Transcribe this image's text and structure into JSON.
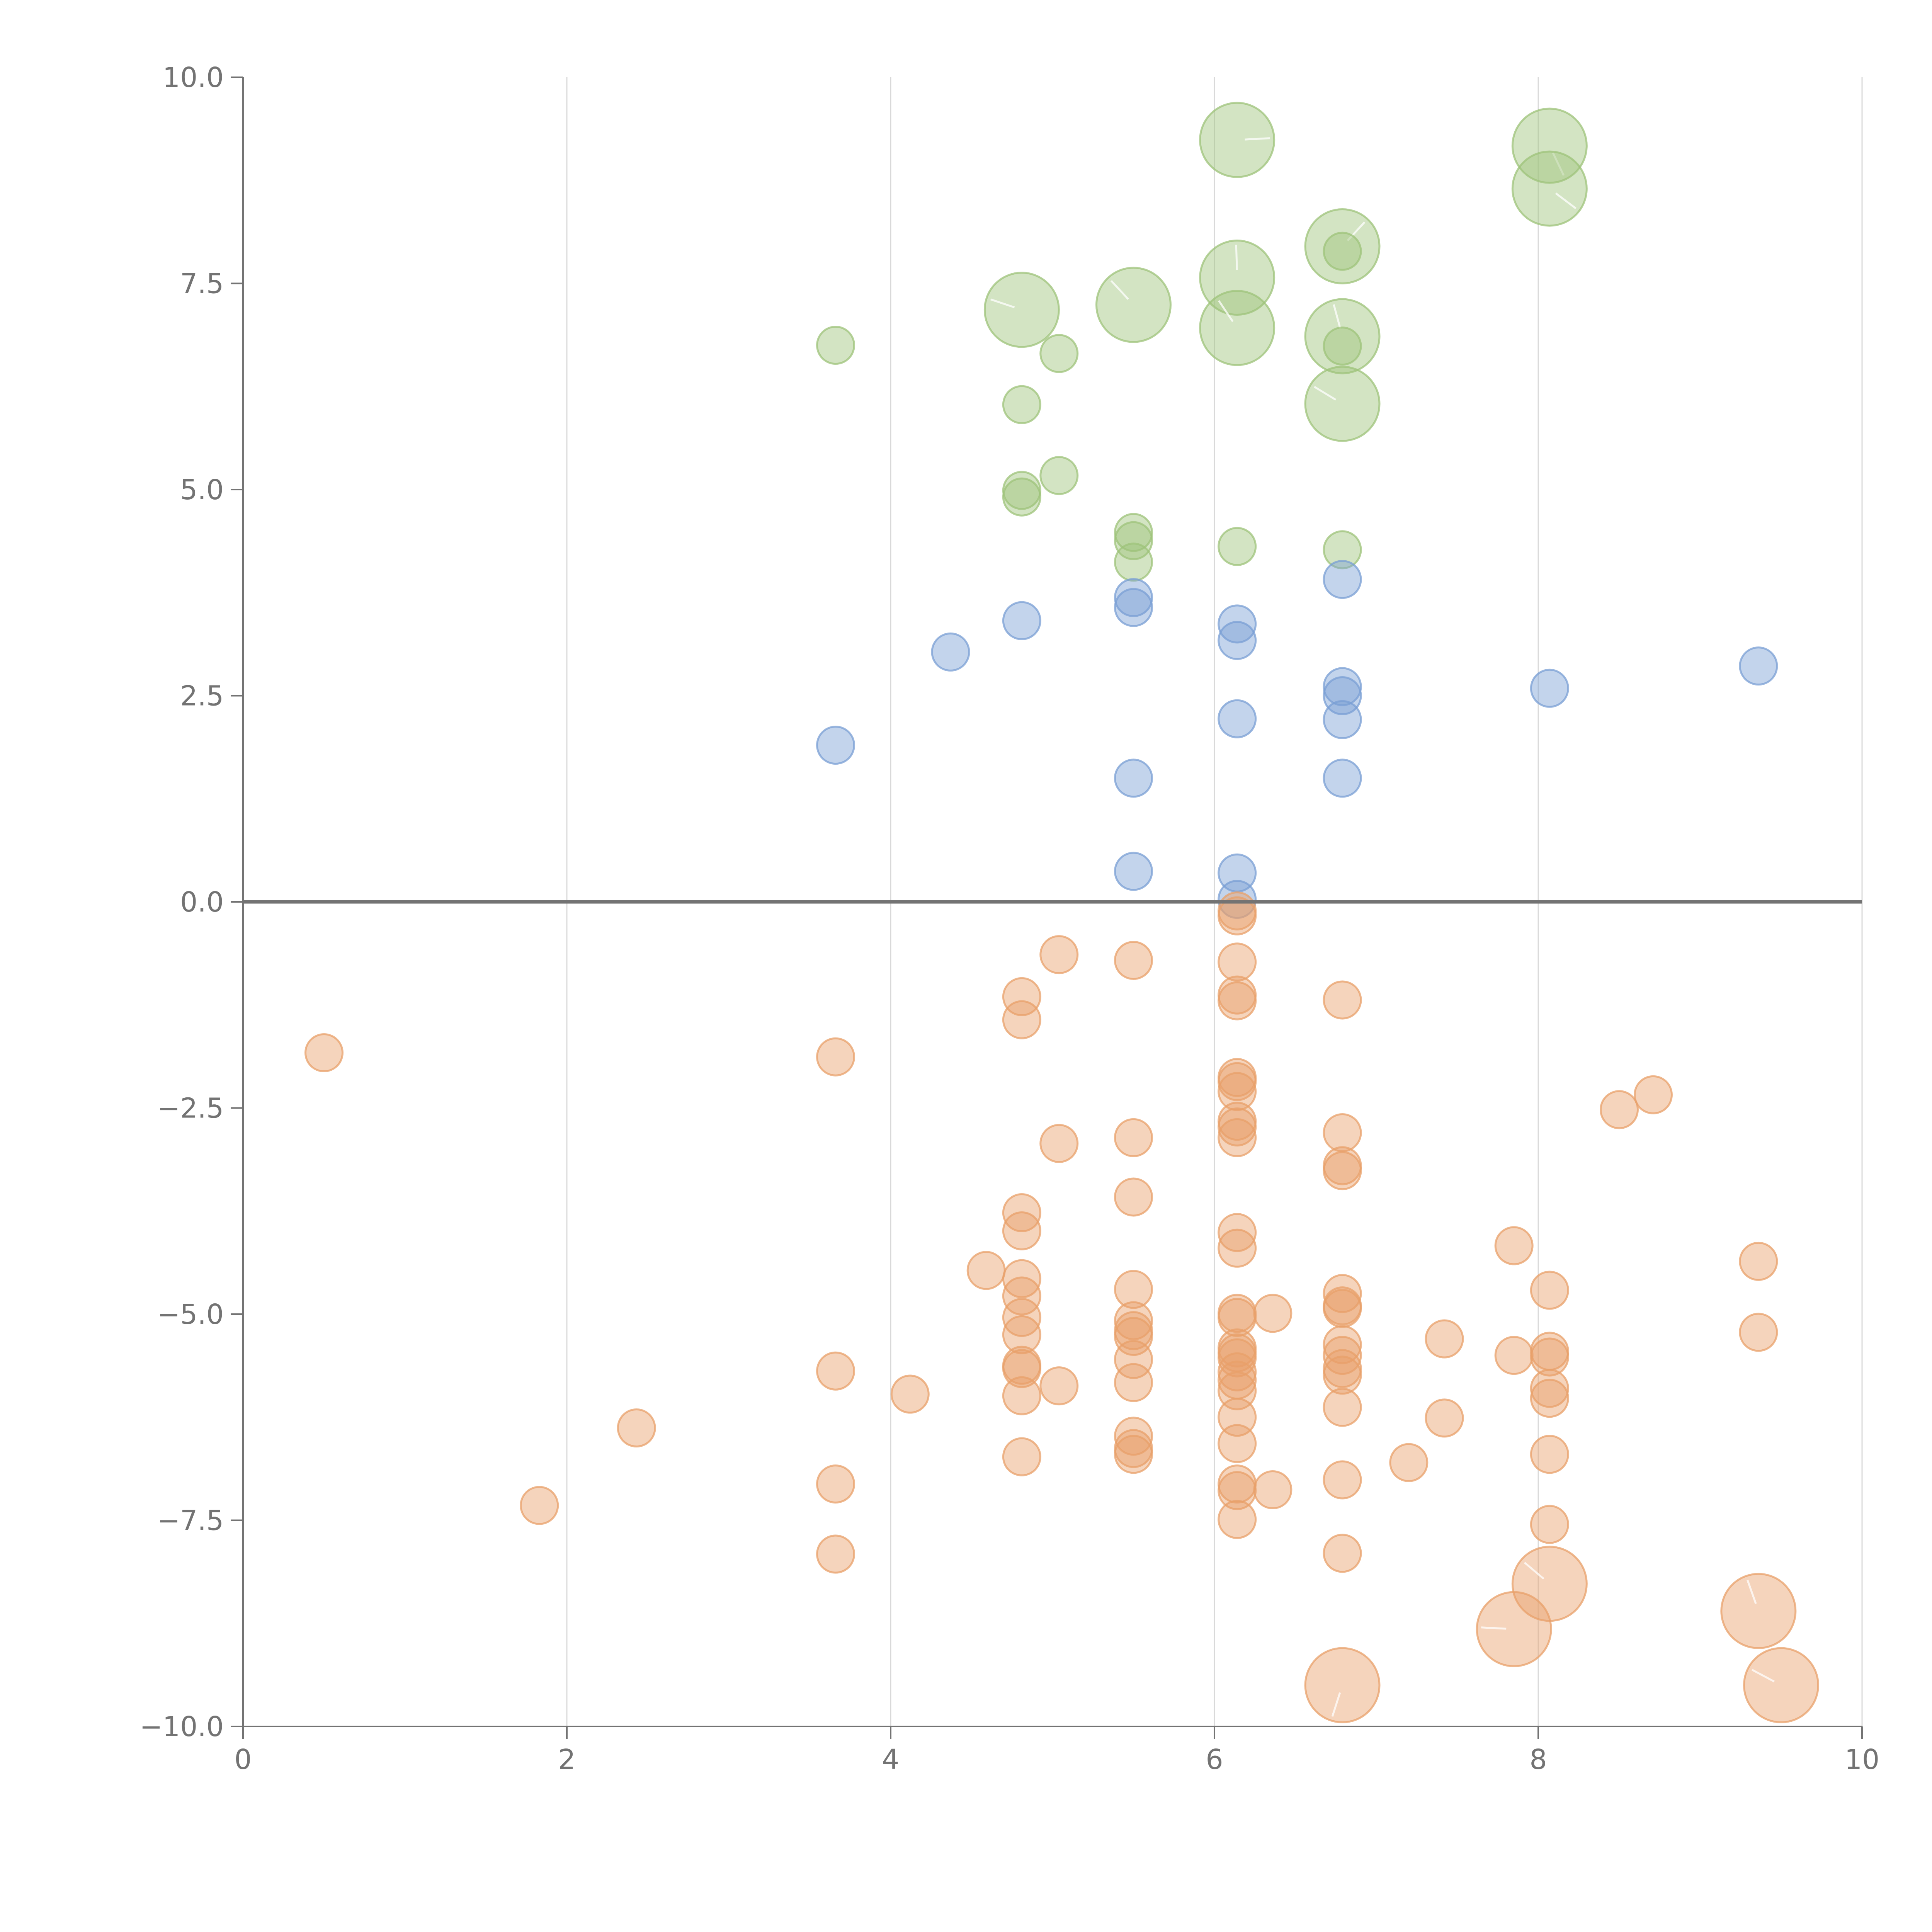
{
  "chart_data": {
    "type": "scatter",
    "title": "",
    "xlabel": "",
    "ylabel": "",
    "xlim": [
      0,
      10
    ],
    "ylim": [
      -10,
      10
    ],
    "x_ticks": [
      0,
      2,
      4,
      6,
      8,
      10
    ],
    "y_ticks": [
      -10,
      -7.5,
      -5,
      -2.5,
      0,
      2.5,
      5,
      7.5,
      10
    ],
    "x_tick_labels": [
      "0",
      "2",
      "4",
      "6",
      "8",
      "10"
    ],
    "y_tick_labels": [
      "−10.0",
      "−7.5",
      "−5.0",
      "−2.5",
      "0.0",
      "2.5",
      "5.0",
      "7.5",
      "10.0"
    ],
    "grid": "vertical only",
    "zero_line": true,
    "point_style": "semi-transparent circles, size encodes a third value",
    "series": [
      {
        "color": "#9dc37a",
        "points": [
          {
            "x": 6.14,
            "y": 9.24,
            "size": 3
          },
          {
            "x": 8.07,
            "y": 9.17,
            "size": 3
          },
          {
            "x": 8.07,
            "y": 8.65,
            "size": 3
          },
          {
            "x": 6.79,
            "y": 7.95,
            "size": 3
          },
          {
            "x": 6.79,
            "y": 7.89,
            "size": 1
          },
          {
            "x": 6.14,
            "y": 7.57,
            "size": 3
          },
          {
            "x": 4.81,
            "y": 7.18,
            "size": 3
          },
          {
            "x": 5.5,
            "y": 7.24,
            "size": 3
          },
          {
            "x": 6.14,
            "y": 6.96,
            "size": 3
          },
          {
            "x": 6.79,
            "y": 6.86,
            "size": 3
          },
          {
            "x": 6.79,
            "y": 6.74,
            "size": 1
          },
          {
            "x": 3.66,
            "y": 6.75,
            "size": 1
          },
          {
            "x": 5.04,
            "y": 6.65,
            "size": 1
          },
          {
            "x": 4.81,
            "y": 6.03,
            "size": 1
          },
          {
            "x": 6.79,
            "y": 6.04,
            "size": 3
          },
          {
            "x": 5.04,
            "y": 5.17,
            "size": 1
          },
          {
            "x": 4.81,
            "y": 4.99,
            "size": 1
          },
          {
            "x": 4.81,
            "y": 4.91,
            "size": 1
          },
          {
            "x": 5.5,
            "y": 4.48,
            "size": 1
          },
          {
            "x": 5.5,
            "y": 4.38,
            "size": 1
          },
          {
            "x": 6.14,
            "y": 4.31,
            "size": 1
          },
          {
            "x": 6.79,
            "y": 4.27,
            "size": 1
          },
          {
            "x": 5.5,
            "y": 4.12,
            "size": 1
          }
        ]
      },
      {
        "color": "#7a9fd4",
        "points": [
          {
            "x": 6.79,
            "y": 3.91
          },
          {
            "x": 5.5,
            "y": 3.69
          },
          {
            "x": 5.5,
            "y": 3.57
          },
          {
            "x": 4.81,
            "y": 3.41
          },
          {
            "x": 6.14,
            "y": 3.37
          },
          {
            "x": 6.14,
            "y": 3.17
          },
          {
            "x": 4.37,
            "y": 3.03
          },
          {
            "x": 9.36,
            "y": 2.86
          },
          {
            "x": 6.79,
            "y": 2.61
          },
          {
            "x": 8.07,
            "y": 2.59
          },
          {
            "x": 6.79,
            "y": 2.5
          },
          {
            "x": 6.14,
            "y": 2.22
          },
          {
            "x": 6.79,
            "y": 2.21
          },
          {
            "x": 3.66,
            "y": 1.9
          },
          {
            "x": 5.5,
            "y": 1.5
          },
          {
            "x": 6.79,
            "y": 1.5
          },
          {
            "x": 5.5,
            "y": 0.37
          },
          {
            "x": 6.14,
            "y": 0.35
          },
          {
            "x": 6.14,
            "y": 0.03
          }
        ]
      },
      {
        "color": "#e8a06a",
        "points": [
          {
            "x": 6.14,
            "y": -0.11
          },
          {
            "x": 6.14,
            "y": -0.17
          },
          {
            "x": 5.04,
            "y": -0.64
          },
          {
            "x": 5.5,
            "y": -0.71
          },
          {
            "x": 6.14,
            "y": -0.73
          },
          {
            "x": 4.81,
            "y": -1.15
          },
          {
            "x": 6.14,
            "y": -1.13
          },
          {
            "x": 6.14,
            "y": -1.2
          },
          {
            "x": 6.79,
            "y": -1.19
          },
          {
            "x": 4.81,
            "y": -1.43
          },
          {
            "x": 0.5,
            "y": -1.83
          },
          {
            "x": 3.66,
            "y": -1.88
          },
          {
            "x": 6.14,
            "y": -2.13
          },
          {
            "x": 6.14,
            "y": -2.18
          },
          {
            "x": 6.14,
            "y": -2.3
          },
          {
            "x": 8.71,
            "y": -2.34
          },
          {
            "x": 8.5,
            "y": -2.52
          },
          {
            "x": 6.14,
            "y": -2.66
          },
          {
            "x": 6.14,
            "y": -2.73
          },
          {
            "x": 6.79,
            "y": -2.8
          },
          {
            "x": 5.5,
            "y": -2.86
          },
          {
            "x": 6.14,
            "y": -2.86
          },
          {
            "x": 5.04,
            "y": -2.93
          },
          {
            "x": 6.79,
            "y": -3.2
          },
          {
            "x": 6.79,
            "y": -3.26
          },
          {
            "x": 5.5,
            "y": -3.58
          },
          {
            "x": 4.81,
            "y": -3.77
          },
          {
            "x": 4.81,
            "y": -3.99
          },
          {
            "x": 6.14,
            "y": -4.01
          },
          {
            "x": 6.14,
            "y": -4.2
          },
          {
            "x": 7.85,
            "y": -4.17
          },
          {
            "x": 9.36,
            "y": -4.36
          },
          {
            "x": 4.59,
            "y": -4.47
          },
          {
            "x": 4.81,
            "y": -4.57
          },
          {
            "x": 5.5,
            "y": -4.7
          },
          {
            "x": 8.07,
            "y": -4.71
          },
          {
            "x": 6.79,
            "y": -4.75
          },
          {
            "x": 4.81,
            "y": -4.78
          },
          {
            "x": 6.79,
            "y": -4.9
          },
          {
            "x": 6.14,
            "y": -4.99
          },
          {
            "x": 6.36,
            "y": -4.99
          },
          {
            "x": 4.81,
            "y": -5.04
          },
          {
            "x": 6.14,
            "y": -5.04
          },
          {
            "x": 5.5,
            "y": -5.08
          },
          {
            "x": 6.79,
            "y": -4.93
          },
          {
            "x": 5.5,
            "y": -5.2
          },
          {
            "x": 5.5,
            "y": -5.27
          },
          {
            "x": 9.36,
            "y": -5.22
          },
          {
            "x": 4.81,
            "y": -5.25
          },
          {
            "x": 7.42,
            "y": -5.3
          },
          {
            "x": 6.79,
            "y": -5.37
          },
          {
            "x": 6.14,
            "y": -5.41
          },
          {
            "x": 6.14,
            "y": -5.47
          },
          {
            "x": 8.07,
            "y": -5.45
          },
          {
            "x": 6.14,
            "y": -5.53
          },
          {
            "x": 8.07,
            "y": -5.52
          },
          {
            "x": 6.79,
            "y": -5.5
          },
          {
            "x": 7.85,
            "y": -5.5
          },
          {
            "x": 5.5,
            "y": -5.55
          },
          {
            "x": 6.79,
            "y": -5.66
          },
          {
            "x": 3.66,
            "y": -5.69
          },
          {
            "x": 4.81,
            "y": -5.62
          },
          {
            "x": 4.81,
            "y": -5.66
          },
          {
            "x": 6.14,
            "y": -5.7
          },
          {
            "x": 6.79,
            "y": -5.74
          },
          {
            "x": 6.14,
            "y": -5.8
          },
          {
            "x": 5.5,
            "y": -5.83
          },
          {
            "x": 5.04,
            "y": -5.87
          },
          {
            "x": 6.14,
            "y": -5.93
          },
          {
            "x": 8.07,
            "y": -5.9
          },
          {
            "x": 4.12,
            "y": -5.97
          },
          {
            "x": 4.81,
            "y": -5.99
          },
          {
            "x": 8.07,
            "y": -6.02
          },
          {
            "x": 6.79,
            "y": -6.13
          },
          {
            "x": 6.14,
            "y": -6.25
          },
          {
            "x": 7.42,
            "y": -6.26
          },
          {
            "x": 2.43,
            "y": -6.38
          },
          {
            "x": 5.5,
            "y": -6.48
          },
          {
            "x": 5.5,
            "y": -6.63
          },
          {
            "x": 6.14,
            "y": -6.57
          },
          {
            "x": 5.5,
            "y": -6.7
          },
          {
            "x": 8.07,
            "y": -6.7
          },
          {
            "x": 4.81,
            "y": -6.73
          },
          {
            "x": 7.2,
            "y": -6.8
          },
          {
            "x": 6.79,
            "y": -7.01
          },
          {
            "x": 3.66,
            "y": -7.06
          },
          {
            "x": 6.14,
            "y": -7.06
          },
          {
            "x": 6.14,
            "y": -7.14
          },
          {
            "x": 6.36,
            "y": -7.13
          },
          {
            "x": 1.83,
            "y": -7.32
          },
          {
            "x": 6.14,
            "y": -7.49
          },
          {
            "x": 8.07,
            "y": -7.55
          },
          {
            "x": 3.66,
            "y": -7.91
          },
          {
            "x": 6.79,
            "y": -7.9
          },
          {
            "x": 8.07,
            "y": -8.27,
            "size": 3
          },
          {
            "x": 9.36,
            "y": -8.6,
            "size": 3
          },
          {
            "x": 7.85,
            "y": -8.82,
            "size": 3
          },
          {
            "x": 6.79,
            "y": -9.5,
            "size": 3
          },
          {
            "x": 9.5,
            "y": -9.5,
            "size": 3
          }
        ]
      }
    ]
  }
}
